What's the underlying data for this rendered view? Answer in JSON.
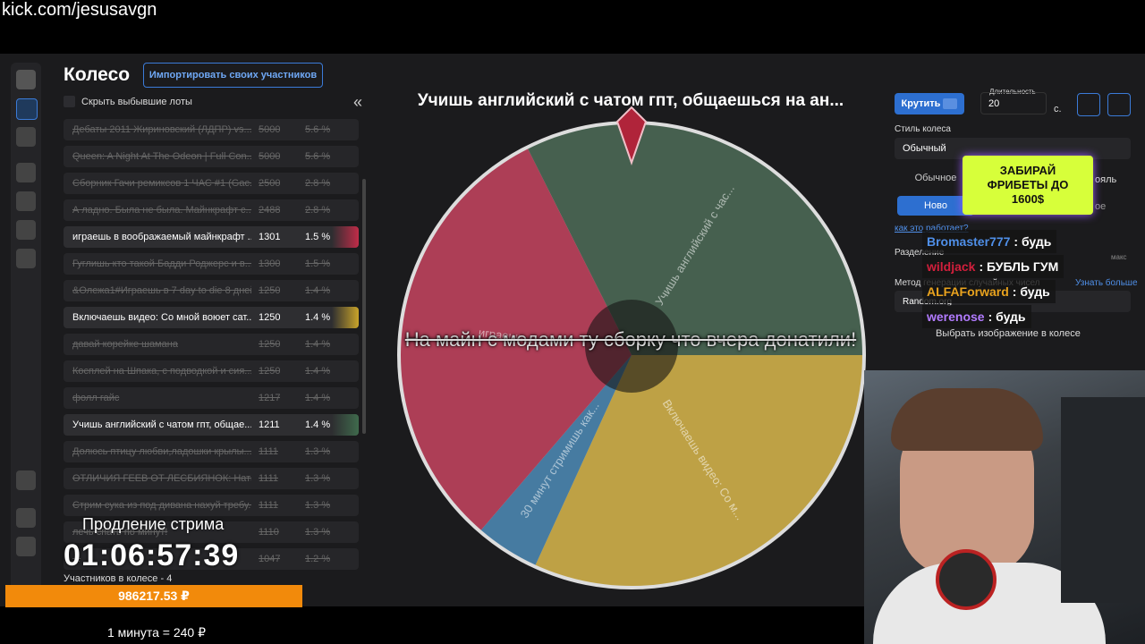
{
  "browser": {
    "url": "kick.com/jesusavgn"
  },
  "header": {
    "title": "Колесо",
    "import_button": "Импортировать своих участников",
    "hide_label": "Скрыть выбывшие лоты",
    "collapse": "«"
  },
  "lots": [
    {
      "name": "Дебаты 2011 Жириновский (ЛДПР) vs...",
      "amount": 5000,
      "percent": "5.6 %",
      "active": false
    },
    {
      "name": "Queen: A Night At The Odeon | Full Con...",
      "amount": 5000,
      "percent": "5.6 %",
      "active": false
    },
    {
      "name": "Сборник Гачи ремиксов 1 ЧАС #1 (Gac...",
      "amount": 2500,
      "percent": "2.8 %",
      "active": false
    },
    {
      "name": "А ладно. Была не была. Майнкрафт с...",
      "amount": 2488,
      "percent": "2.8 %",
      "active": false
    },
    {
      "name": "играешь в воображаемый майнкрафт ...",
      "amount": 1301,
      "percent": "1.5 %",
      "active": true,
      "color": "#c02c48"
    },
    {
      "name": "Гуглишь кто такой Бадди Роджерс и в...",
      "amount": 1300,
      "percent": "1.5 %",
      "active": false
    },
    {
      "name": "&Олежа1#Играешь в 7 day to die 8 дней!",
      "amount": 1250,
      "percent": "1.4 %",
      "active": false
    },
    {
      "name": "Включаешь видео: Со мной воюет сат...",
      "amount": 1250,
      "percent": "1.4 %",
      "active": true,
      "color": "#c9a42a"
    },
    {
      "name": "давай корейке шамана",
      "amount": 1250,
      "percent": "1.4 %",
      "active": false
    },
    {
      "name": "Косплей на Шпака, с подводкой и сия...",
      "amount": 1250,
      "percent": "1.4 %",
      "active": false
    },
    {
      "name": "фолл гайс",
      "amount": 1217,
      "percent": "1.4 %",
      "active": false
    },
    {
      "name": "Учишь английский с чатом гпт, общае...",
      "amount": 1211,
      "percent": "1.4 %",
      "active": true,
      "color": "#3f6a4c"
    },
    {
      "name": "Долюсь птицу любви,ладошки крылы...",
      "amount": 1111,
      "percent": "1.3 %",
      "active": false
    },
    {
      "name": "ОТЛИЧИЯ ГЕЕВ ОТ ЛЕСБИЯНОК: Наташ...",
      "amount": 1111,
      "percent": "1.3 %",
      "active": false
    },
    {
      "name": "Стрим сука из под дивана нахуй требу...",
      "amount": 1111,
      "percent": "1.3 %",
      "active": false
    },
    {
      "name": "лечь спать по минут!",
      "amount": 1110,
      "percent": "1.3 %",
      "active": false
    },
    {
      "name": "...",
      "amount": 1047,
      "percent": "1.2 %",
      "active": false
    }
  ],
  "wheel": {
    "title": "Учишь английский с чатом гпт, общаешься на ан...",
    "center_text": "На майн с модами ту сборку что вчера донатили!",
    "segments": [
      "Учишь английский с час...",
      "Включаешь видео: Со м...",
      "30 минут стримишь как...",
      "играешь..."
    ]
  },
  "controls": {
    "spin": "Крутить",
    "duration_label": "Длительность",
    "duration": "20",
    "unit": "с.",
    "style_label": "Стиль колеса",
    "style": "Обычный",
    "mode_normal": "Обычное",
    "mode_new": "Ново",
    "mode_duel": "ояль",
    "mode_other": "ое",
    "how": "как это работает?",
    "split_label": "Разделение",
    "max": "макс",
    "rng_label": "Метод генерации случайных чисел",
    "learn_more": "Узнать больше",
    "rng": "Random.org",
    "image": "Выбрать изображение в колесе"
  },
  "ad": "ЗАБИРАЙ ФРИБЕТЫ ДО 1600$",
  "chat": [
    {
      "user": "Bromaster777",
      "color": "#4f8fe8",
      "text": ": будь"
    },
    {
      "user": "wildjack",
      "color": "#d21f3c",
      "text": ": БУБЛЬ ГУМ"
    },
    {
      "user": "ALFAForward",
      "color": "#e8a21e",
      "text": ": будь"
    },
    {
      "user": "werenose",
      "color": "#b27bff",
      "text": ": будь"
    }
  ],
  "overlay": {
    "extension_label": "Продление стрима",
    "timer": "01:06:57:39",
    "participants": "Участников в колесе - 4",
    "total": "986217.53 ₽",
    "rate": "1 минута = 240 ₽"
  }
}
